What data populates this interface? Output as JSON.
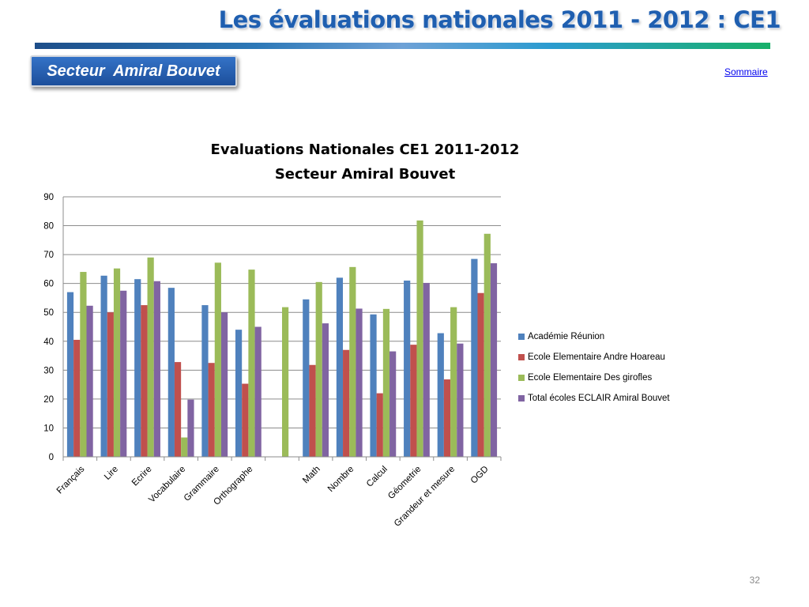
{
  "slide": {
    "title": "Les évaluations nationales 2011 - 2012 : CE1",
    "sector_label": "Secteur  Amiral Bouvet",
    "sommaire_link": "Sommaire",
    "page_number": "32"
  },
  "chart_data": {
    "type": "bar",
    "title_line1": "Evaluations Nationales CE1 2011-2012",
    "title_line2": "Secteur Amiral Bouvet",
    "xlabel": "",
    "ylabel": "",
    "ylim": [
      0,
      90
    ],
    "yticks": [
      0,
      10,
      20,
      30,
      40,
      50,
      60,
      70,
      80,
      90
    ],
    "grid": true,
    "legend_position": "right",
    "categories": [
      "Français",
      "Lire",
      "Ecrire",
      "Vocabulaire",
      "Grammaire",
      "Orthographe",
      "",
      "Math",
      "Nombre",
      "Calcul",
      "Géometrie",
      "Grandeur et mesure",
      "OGD"
    ],
    "series": [
      {
        "name": "Académie Réunion",
        "color": "#4f81bd",
        "values": [
          57,
          62.7,
          61.5,
          58.5,
          52.5,
          44,
          null,
          54.5,
          62,
          49.3,
          61,
          42.8,
          68.5
        ]
      },
      {
        "name": "Ecole Elementaire Andre Hoareau",
        "color": "#c0504d",
        "values": [
          40.5,
          50,
          52.5,
          32.8,
          32.5,
          25.3,
          null,
          31.8,
          37,
          22,
          38.8,
          26.8,
          56.7
        ]
      },
      {
        "name": "Ecole Elementaire Des girofles",
        "color": "#9bbb59",
        "values": [
          64,
          65.2,
          69,
          6.7,
          67.2,
          64.8,
          51.8,
          60.5,
          65.7,
          51.2,
          81.8,
          51.8,
          77.2
        ]
      },
      {
        "name": "Total écoles ECLAIR Amiral Bouvet",
        "color": "#8064a2",
        "values": [
          52.3,
          57.5,
          60.8,
          19.8,
          50,
          45,
          null,
          46.2,
          51.3,
          36.5,
          60.2,
          39.2,
          67
        ]
      }
    ]
  }
}
